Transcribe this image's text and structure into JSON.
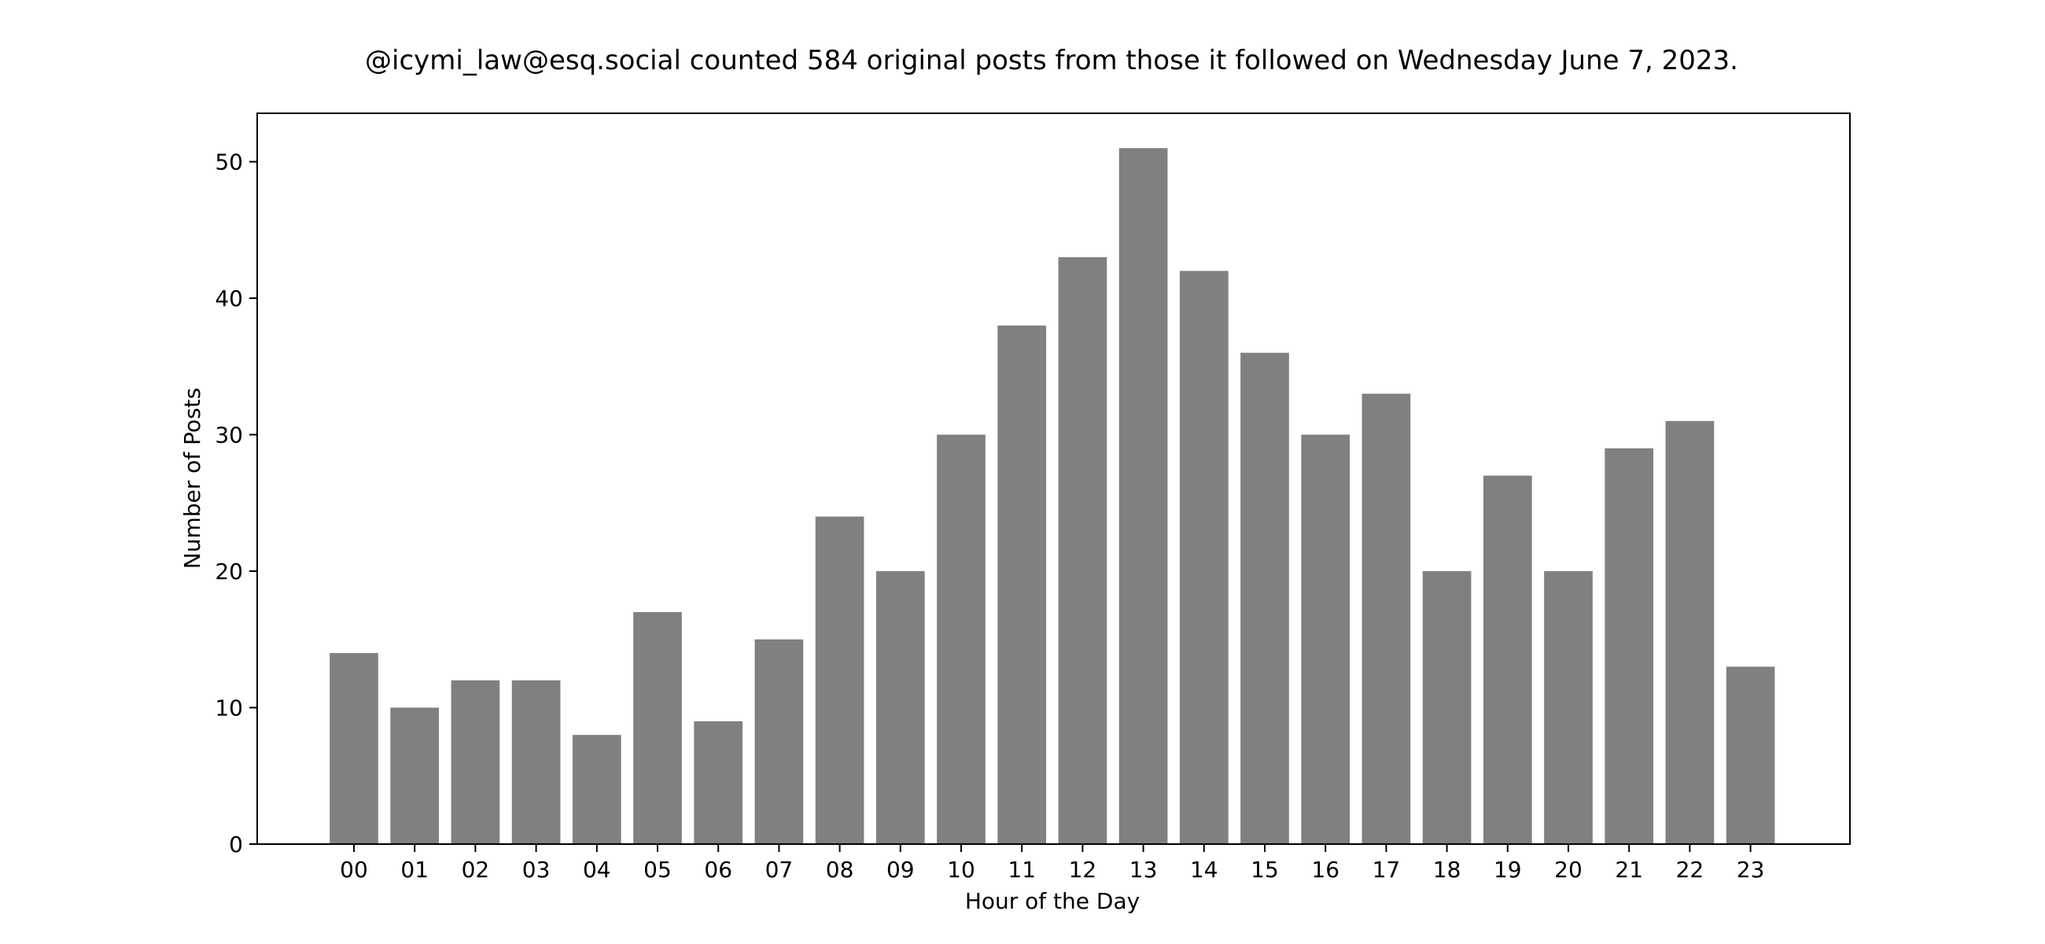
{
  "chart_data": {
    "type": "bar",
    "title": "@icymi_law@esq.social counted 584 original posts from those it followed on Wednesday June 7, 2023.",
    "xlabel": "Hour of the Day",
    "ylabel": "Number of Posts",
    "categories": [
      "00",
      "01",
      "02",
      "03",
      "04",
      "05",
      "06",
      "07",
      "08",
      "09",
      "10",
      "11",
      "12",
      "13",
      "14",
      "15",
      "16",
      "17",
      "18",
      "19",
      "20",
      "21",
      "22",
      "23"
    ],
    "values": [
      14,
      10,
      12,
      12,
      8,
      17,
      9,
      15,
      24,
      20,
      30,
      38,
      43,
      51,
      42,
      36,
      30,
      33,
      20,
      27,
      20,
      29,
      31,
      13
    ],
    "yticks": [
      0,
      10,
      20,
      30,
      40,
      50
    ],
    "ylim": [
      0,
      53.55
    ],
    "grid": false,
    "legend": "none",
    "bar_color": "#808080",
    "axis_color": "#000000"
  }
}
